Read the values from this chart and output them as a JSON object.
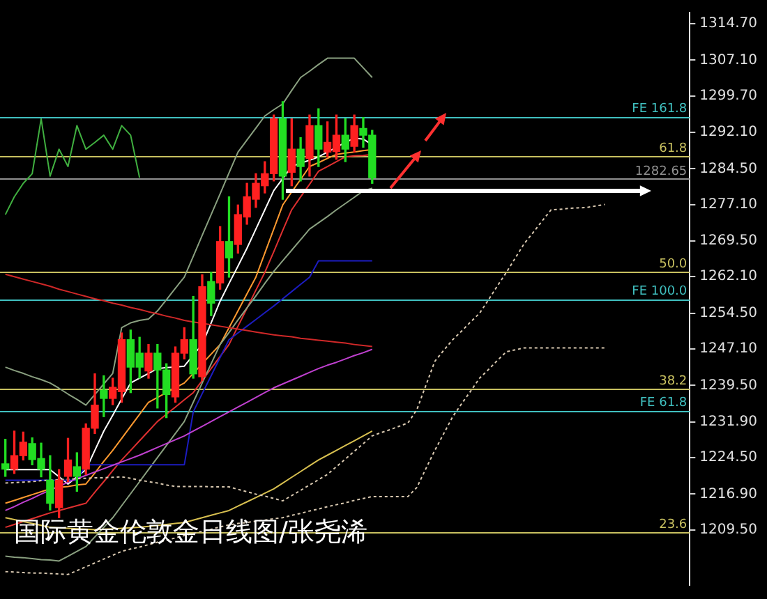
{
  "chart_data": {
    "type": "candlestick",
    "title": "国际黄金伦敦金日线图/张尧浠",
    "categories": [
      null,
      null,
      null,
      null,
      null,
      null,
      null,
      null,
      null,
      null,
      null,
      null,
      null,
      null,
      null,
      null,
      null,
      null,
      null,
      null,
      null,
      null,
      null,
      null,
      null,
      null,
      null,
      null,
      null,
      null,
      null,
      null,
      null,
      null,
      null,
      null,
      null,
      null,
      null,
      null,
      null,
      null,
      null,
      null,
      null,
      null,
      null,
      null,
      null,
      null,
      null,
      null,
      null,
      null,
      null,
      null,
      null,
      null,
      null,
      null,
      null,
      null,
      null,
      null,
      null,
      null,
      null,
      null,
      null,
      null,
      null,
      null,
      null,
      null,
      null,
      null,
      null
    ],
    "ohlc": [
      [
        1223.2,
        1228.3,
        1220.6,
        1222.1
      ],
      [
        1222.1,
        1230.0,
        1221.2,
        1224.9
      ],
      [
        1224.9,
        1229.8,
        1224.0,
        1227.7
      ],
      [
        1227.4,
        1228.6,
        1223.0,
        1224.1
      ],
      [
        1224.3,
        1227.5,
        1220.5,
        1222.1
      ],
      [
        1219.8,
        1224.9,
        1213.6,
        1215.0
      ],
      [
        1214.1,
        1222.0,
        1212.0,
        1219.8
      ],
      [
        1220.6,
        1228.5,
        1219.5,
        1224.0
      ],
      [
        1222.6,
        1225.5,
        1217.5,
        1220.6
      ],
      [
        1222.1,
        1231.5,
        1221.0,
        1230.6
      ],
      [
        1230.6,
        1241.9,
        1229.5,
        1235.4
      ],
      [
        1238.5,
        1241.5,
        1233.0,
        1236.8
      ],
      [
        1236.8,
        1241.0,
        1235.5,
        1239.1
      ],
      [
        1238.2,
        1250.4,
        1236.0,
        1249.0
      ],
      [
        1249.0,
        1251.0,
        1238.0,
        1243.3
      ],
      [
        1246.2,
        1249.5,
        1241.0,
        1243.3
      ],
      [
        1242.5,
        1248.0,
        1241.0,
        1246.2
      ],
      [
        1246.2,
        1248.0,
        1234.8,
        1242.7
      ],
      [
        1242.7,
        1244.0,
        1232.8,
        1237.6
      ],
      [
        1237.1,
        1247.5,
        1236.0,
        1246.2
      ],
      [
        1246.2,
        1251.5,
        1245.0,
        1249.0
      ],
      [
        1249.0,
        1258.0,
        1241.0,
        1241.9
      ],
      [
        1241.3,
        1262.5,
        1240.5,
        1260.0
      ],
      [
        1261.1,
        1263.0,
        1254.0,
        1256.6
      ],
      [
        1260.8,
        1272.5,
        1259.5,
        1269.4
      ],
      [
        1269.4,
        1278.7,
        1262.0,
        1266.0
      ],
      [
        1268.8,
        1277.0,
        1267.0,
        1275.0
      ],
      [
        1274.5,
        1281.5,
        1273.0,
        1278.7
      ],
      [
        1278.2,
        1283.5,
        1276.5,
        1281.5
      ],
      [
        1281.0,
        1286.0,
        1279.5,
        1283.5
      ],
      [
        1283.5,
        1295.7,
        1282.0,
        1294.9
      ],
      [
        1294.9,
        1298.5,
        1278.2,
        1283.0
      ],
      [
        1283.8,
        1294.9,
        1281.0,
        1288.6
      ],
      [
        1288.6,
        1291.0,
        1282.0,
        1285.0
      ],
      [
        1286.7,
        1295.7,
        1283.0,
        1293.5
      ],
      [
        1293.5,
        1297.0,
        1285.0,
        1288.6
      ],
      [
        1288.0,
        1294.3,
        1287.0,
        1290.0
      ],
      [
        1288.1,
        1295.7,
        1286.5,
        1291.5
      ],
      [
        1291.5,
        1294.9,
        1286.0,
        1288.6
      ],
      [
        1289.2,
        1295.7,
        1288.0,
        1293.5
      ],
      [
        1292.9,
        1295.2,
        1289.0,
        1291.5
      ],
      [
        1291.5,
        1292.5,
        1281.5,
        1282.65
      ],
      null,
      null,
      null,
      null,
      null,
      null,
      null,
      null,
      null,
      null,
      null,
      null,
      null,
      null,
      null,
      null,
      null,
      null,
      null,
      null,
      null,
      null,
      null,
      null,
      null,
      null,
      null,
      null,
      null,
      null,
      null,
      null,
      null,
      null,
      null
    ],
    "colors": [
      "#22dd22",
      "#ff2020",
      "#ff2020",
      "#22dd22",
      "#22dd22",
      "#22dd22",
      "#ff2020",
      "#ff2020",
      "#22dd22",
      "#ff2020",
      "#ff2020",
      "#22dd22",
      "#ff2020",
      "#ff2020",
      "#22dd22",
      "#22dd22",
      "#ff2020",
      "#22dd22",
      "#22dd22",
      "#ff2020",
      "#ff2020",
      "#22dd22",
      "#ff2020",
      "#22dd22",
      "#ff2020",
      "#22dd22",
      "#ff2020",
      "#ff2020",
      "#ff2020",
      "#ff2020",
      "#ff2020",
      "#22dd22",
      "#ff2020",
      "#22dd22",
      "#ff2020",
      "#22dd22",
      "#ff2020",
      "#ff2020",
      "#22dd22",
      "#ff2020",
      "#22dd22",
      "#22dd22",
      null,
      null,
      null,
      null,
      null,
      null,
      null,
      null,
      null,
      null,
      null,
      null,
      null,
      null,
      null,
      null,
      null,
      null,
      null,
      null,
      null,
      null,
      null,
      null,
      null,
      null,
      null,
      null,
      null,
      null,
      null,
      null,
      null,
      null,
      null
    ],
    "series": [
      {
        "type": "line",
        "color": "#d8c8b0",
        "line_style": "dotted",
        "values": [
          1200.8,
          1200.7,
          1200.6,
          1200.5,
          1200.5,
          1200.4,
          1200.3,
          1200.2,
          1201.0,
          1201.8,
          1202.6,
          1203.4,
          1204.2,
          1205.0,
          1205.5,
          1205.9,
          1206.4,
          1206.9,
          1207.3,
          1207.8,
          1208.3,
          1208.7,
          1209.2,
          1209.6,
          1210.1,
          1210.5,
          1210.8,
          1211.0,
          1211.3,
          1211.5,
          1211.8,
          1212.0,
          1212.5,
          1212.9,
          1213.4,
          1213.8,
          1214.3,
          1214.7,
          1215.1,
          1215.6,
          1216.0,
          1216.4,
          1216.4,
          1216.4,
          1216.4,
          1216.4,
          1218.3,
          1222.2,
          1226.0,
          1229.5,
          1233.0,
          1235.7,
          1238.3,
          1241.0,
          1242.8,
          1244.7,
          1246.5,
          1246.9,
          1247.3,
          1247.3,
          1247.3,
          1247.3,
          1247.3,
          1247.3,
          1247.3,
          1247.3,
          1247.3,
          1247.3,
          null,
          null,
          null,
          null,
          null,
          null,
          null,
          null,
          null
        ]
      },
      {
        "type": "line",
        "color": "#d8c8b0",
        "line_style": "dotted",
        "values": [
          1219.2,
          1219.3,
          1219.4,
          1219.5,
          1219.7,
          1219.8,
          1219.9,
          1220.0,
          1220.1,
          1220.2,
          1220.3,
          1220.3,
          1220.4,
          1220.5,
          1220.2,
          1219.8,
          1219.5,
          1219.2,
          1218.8,
          1218.5,
          1218.5,
          1218.5,
          1218.5,
          1218.4,
          1218.4,
          1218.4,
          1217.9,
          1217.4,
          1216.9,
          1216.5,
          1216.0,
          1215.5,
          1216.6,
          1217.7,
          1218.8,
          1219.9,
          1221.0,
          1222.6,
          1224.2,
          1225.8,
          1227.4,
          1229.0,
          1229.7,
          1230.3,
          1231.0,
          1231.7,
          1234.5,
          1239.5,
          1244.5,
          1246.8,
          1249.0,
          1250.8,
          1252.7,
          1254.5,
          1257.3,
          1260.2,
          1263.0,
          1266.0,
          1269.0,
          1271.3,
          1273.7,
          1276.0,
          1276.1,
          1276.3,
          1276.4,
          1276.5,
          1276.8,
          1277.1,
          null,
          null,
          null,
          null,
          null,
          null,
          null,
          null,
          null
        ]
      },
      {
        "type": "line",
        "color": "#d02828",
        "values": [
          1262.6,
          1262.1,
          1261.6,
          1261.1,
          1260.6,
          1260.1,
          1259.5,
          1259.0,
          1258.5,
          1258.0,
          1257.5,
          1257.1,
          1256.6,
          1256.2,
          1255.7,
          1255.3,
          1254.8,
          1254.4,
          1253.9,
          1253.5,
          1253.0,
          1252.7,
          1252.4,
          1252.1,
          1251.8,
          1251.5,
          1251.2,
          1250.9,
          1250.6,
          1250.3,
          1250.0,
          1249.8,
          1249.6,
          1249.3,
          1249.1,
          1248.9,
          1248.7,
          1248.5,
          1248.3,
          1248.0,
          1247.8,
          1247.6,
          null,
          null,
          null,
          null,
          null,
          null,
          null,
          null,
          null,
          null,
          null,
          null,
          null,
          null,
          null,
          null,
          null,
          null,
          null,
          null,
          null,
          null,
          null,
          null,
          null,
          null,
          null,
          null,
          null,
          null,
          null,
          null,
          null,
          null,
          null
        ]
      },
      {
        "type": "line",
        "color": "#d8c050",
        "values": [
          1212.0,
          1211.6,
          1211.2,
          1210.8,
          1210.4,
          1210.0,
          1209.9,
          1209.8,
          1209.7,
          1209.6,
          1209.5,
          1209.6,
          1209.7,
          1209.8,
          1209.9,
          1210.0,
          1210.2,
          1210.4,
          1210.6,
          1210.8,
          1211.0,
          1211.5,
          1212.0,
          1212.5,
          1213.0,
          1213.5,
          1214.4,
          1215.3,
          1216.2,
          1217.1,
          1218.0,
          1219.2,
          1220.4,
          1221.6,
          1222.8,
          1224.0,
          1225.0,
          1226.0,
          1227.0,
          1228.0,
          1229.0,
          1230.0,
          null,
          null,
          null,
          null,
          null,
          null,
          null,
          null,
          null,
          null,
          null,
          null,
          null,
          null,
          null,
          null,
          null,
          null,
          null,
          null,
          null,
          null,
          null,
          null,
          null,
          null,
          null,
          null,
          null,
          null,
          null,
          null,
          null,
          null,
          null
        ]
      },
      {
        "type": "line",
        "color": "#c040d0",
        "values": [
          1213.5,
          1214.3,
          1215.2,
          1216.0,
          1216.9,
          1217.7,
          1218.5,
          1219.4,
          1220.1,
          1220.8,
          1221.5,
          1222.2,
          1222.9,
          1223.6,
          1224.3,
          1225.0,
          1225.8,
          1226.6,
          1227.4,
          1228.2,
          1229.0,
          1230.0,
          1231.0,
          1232.0,
          1233.0,
          1234.0,
          1235.0,
          1236.0,
          1237.0,
          1238.0,
          1239.0,
          1239.8,
          1240.6,
          1241.4,
          1242.2,
          1243.0,
          1243.7,
          1244.3,
          1245.0,
          1245.7,
          1246.3,
          1247.0,
          null,
          null,
          null,
          null,
          null,
          null,
          null,
          null,
          null,
          null,
          null,
          null,
          null,
          null,
          null,
          null,
          null,
          null,
          null,
          null,
          null,
          null,
          null,
          null,
          null,
          null,
          null,
          null,
          null,
          null,
          null,
          null,
          null,
          null,
          null
        ]
      },
      {
        "type": "line",
        "color": "#1c1cc0",
        "values": [
          1219.8,
          1219.8,
          1219.8,
          1219.8,
          1219.8,
          1219.8,
          1219.8,
          1219.8,
          1219.8,
          1223.0,
          1223.0,
          1223.0,
          1223.0,
          1223.0,
          1223.0,
          1223.0,
          1223.0,
          1223.0,
          1223.0,
          1223.0,
          1223.0,
          1234.0,
          1237.8,
          1241.5,
          1245.3,
          1249.0,
          1250.4,
          1251.8,
          1253.2,
          1254.6,
          1256.0,
          1257.5,
          1259.0,
          1260.5,
          1262.0,
          1265.4,
          1265.4,
          1265.4,
          1265.4,
          1265.4,
          1265.4,
          1265.4,
          null,
          null,
          null,
          null,
          null,
          null,
          null,
          null,
          null,
          null,
          null,
          null,
          null,
          null,
          null,
          null,
          null,
          null,
          null,
          null,
          null,
          null,
          null,
          null,
          null,
          null,
          null,
          null,
          null,
          null,
          null,
          null,
          null,
          null,
          null
        ]
      },
      {
        "type": "line",
        "color": "#8aa080",
        "values": [
          1243.3,
          1242.6,
          1242.0,
          1241.3,
          1240.7,
          1240.0,
          1238.9,
          1237.7,
          1236.6,
          1235.4,
          1237.6,
          1239.8,
          1242.0,
          1251.5,
          1252.5,
          1253.0,
          1253.3,
          1255.0,
          1257.3,
          1259.7,
          1262.0,
          1266.3,
          1270.7,
          1275.0,
          1279.3,
          1283.7,
          1288.0,
          1290.5,
          1293.0,
          1295.5,
          1296.8,
          1298.0,
          1300.8,
          1303.5,
          1304.8,
          1306.2,
          1307.5,
          1307.5,
          1307.5,
          1307.5,
          1305.5,
          1303.5,
          null,
          null,
          null,
          null,
          null,
          null,
          null,
          null,
          null,
          null,
          null,
          null,
          null,
          null,
          null,
          null,
          null,
          null,
          null,
          null,
          null,
          null,
          null,
          null,
          null,
          null,
          null,
          null,
          null,
          null,
          null,
          null,
          null,
          null,
          null
        ]
      },
      {
        "type": "line",
        "color": "#8aa080",
        "values": [
          1204.0,
          1203.8,
          1203.7,
          1203.5,
          1203.3,
          1203.2,
          1203.0,
          1204.0,
          1205.0,
          1206.0,
          1208.0,
          1210.0,
          1212.0,
          1214.5,
          1217.0,
          1219.5,
          1222.0,
          1224.5,
          1227.0,
          1229.5,
          1232.0,
          1236.0,
          1240.0,
          1244.0,
          1248.0,
          1250.5,
          1253.1,
          1255.6,
          1258.1,
          1260.7,
          1263.2,
          1265.4,
          1267.6,
          1269.8,
          1272.0,
          1273.3,
          1274.6,
          1276.0,
          1277.3,
          1278.6,
          1279.9,
          1280.5,
          null,
          null,
          null,
          null,
          null,
          null,
          null,
          null,
          null,
          null,
          null,
          null,
          null,
          null,
          null,
          null,
          null,
          null,
          null,
          null,
          null,
          null,
          null,
          null,
          null,
          null,
          null,
          null,
          null,
          null,
          null,
          null,
          null,
          null,
          null
        ]
      },
      {
        "type": "line",
        "color": "#40b040",
        "values": [
          1275.0,
          1278.7,
          1281.5,
          1283.5,
          1294.9,
          1283.0,
          1288.6,
          1285.0,
          1293.5,
          1288.6,
          1290.0,
          1291.5,
          1288.6,
          1293.5,
          1291.5,
          1282.7,
          null,
          null,
          null,
          null,
          null,
          null,
          null,
          null,
          null,
          null,
          null,
          null,
          null,
          null,
          null,
          null,
          null,
          null,
          null,
          null,
          null,
          null,
          null,
          null,
          null,
          null,
          null,
          null,
          null,
          null,
          null,
          null,
          null,
          null,
          null,
          null,
          null,
          null,
          null,
          null,
          null,
          null,
          null,
          null,
          null,
          null,
          null,
          null,
          null,
          null,
          null,
          null,
          null,
          null,
          null,
          null,
          null,
          null,
          null,
          null,
          null
        ]
      },
      {
        "type": "line",
        "color": "#e03030",
        "values": [
          1210.0,
          1210.6,
          1211.2,
          1211.8,
          1212.4,
          1213.0,
          1213.5,
          1214.0,
          1214.5,
          1215.0,
          1217.3,
          1219.5,
          1221.8,
          1224.0,
          1226.0,
          1228.0,
          1230.0,
          1232.0,
          1233.5,
          1235.0,
          1236.5,
          1238.0,
          1240.5,
          1243.0,
          1245.5,
          1248.0,
          1251.8,
          1255.5,
          1259.3,
          1263.0,
          1267.3,
          1271.7,
          1276.0,
          1278.7,
          1281.3,
          1284.0,
          1285.0,
          1286.0,
          1287.0,
          1287.2,
          1287.3,
          1287.5,
          null,
          null,
          null,
          null,
          null,
          null,
          null,
          null,
          null,
          null,
          null,
          null,
          null,
          null,
          null,
          null,
          null,
          null,
          null,
          null,
          null,
          null,
          null,
          null,
          null,
          null,
          null,
          null,
          null,
          null,
          null,
          null,
          null,
          null,
          null
        ]
      },
      {
        "type": "line",
        "color": "#ff9a30",
        "values": [
          1215.0,
          1215.6,
          1216.2,
          1216.8,
          1217.4,
          1218.0,
          1218.3,
          1218.5,
          1218.8,
          1219.0,
          1221.3,
          1223.7,
          1226.0,
          1228.5,
          1231.0,
          1233.5,
          1236.0,
          1237.0,
          1238.0,
          1239.0,
          1240.0,
          1242.0,
          1244.0,
          1246.0,
          1248.0,
          1251.5,
          1255.0,
          1258.5,
          1262.0,
          1267.0,
          1272.0,
          1277.0,
          1279.7,
          1282.3,
          1285.0,
          1285.8,
          1286.7,
          1287.5,
          1287.8,
          1288.0,
          1288.3,
          1288.5,
          null,
          null,
          null,
          null,
          null,
          null,
          null,
          null,
          null,
          null,
          null,
          null,
          null,
          null,
          null,
          null,
          null,
          null,
          null,
          null,
          null,
          null,
          null,
          null,
          null,
          null,
          null,
          null,
          null,
          null,
          null,
          null,
          null,
          null,
          null
        ]
      },
      {
        "type": "line",
        "color": "#ffffff",
        "values": [
          1222.0,
          1222.0,
          1222.0,
          1222.0,
          1222.0,
          1222.0,
          1220.5,
          1219.0,
          1220.5,
          1222.0,
          1226.0,
          1230.0,
          1233.3,
          1236.7,
          1240.0,
          1241.0,
          1242.0,
          1243.0,
          1243.2,
          1243.3,
          1243.5,
          1245.8,
          1248.0,
          1252.5,
          1257.0,
          1260.7,
          1264.3,
          1268.0,
          1272.0,
          1276.0,
          1280.0,
          1282.5,
          1285.0,
          1285.7,
          1286.3,
          1287.0,
          1288.0,
          1289.0,
          1290.0,
          1290.9,
          1290.7,
          1289.5,
          null,
          null,
          null,
          null,
          null,
          null,
          null,
          null,
          null,
          null,
          null,
          null,
          null,
          null,
          null,
          null,
          null,
          null,
          null,
          null,
          null,
          null,
          null,
          null,
          null,
          null,
          null,
          null,
          null,
          null,
          null,
          null,
          null,
          null,
          null
        ]
      }
    ],
    "ylim": [
      1198,
      1317
    ],
    "yticks": [
      {
        "value": 1314.7,
        "label": "1314.70"
      },
      {
        "value": 1307.1,
        "label": "1307.10"
      },
      {
        "value": 1299.7,
        "label": "1299.70"
      },
      {
        "value": 1292.1,
        "label": "1292.10"
      },
      {
        "value": 1284.5,
        "label": "1284.50"
      },
      {
        "value": 1277.1,
        "label": "1277.10"
      },
      {
        "value": 1269.5,
        "label": "1269.50"
      },
      {
        "value": 1262.1,
        "label": "1262.10"
      },
      {
        "value": 1254.5,
        "label": "1254.50"
      },
      {
        "value": 1247.1,
        "label": "1247.10"
      },
      {
        "value": 1239.5,
        "label": "1239.50"
      },
      {
        "value": 1231.9,
        "label": "1231.90"
      },
      {
        "value": 1224.5,
        "label": "1224.50"
      },
      {
        "value": 1216.9,
        "label": "1216.90"
      },
      {
        "value": 1209.5,
        "label": "1209.50"
      }
    ],
    "tick_labels": "y",
    "ref_lines": [
      {
        "axis": "y",
        "value": 1295.4,
        "color": "#40c0c0"
      },
      {
        "axis": "y",
        "value": 1287.2,
        "color": "#c8c060"
      },
      {
        "axis": "y",
        "value": 1282.65,
        "label": "1282.65",
        "color": "#909090"
      },
      {
        "axis": "y",
        "value": 1263.1,
        "color": "#c8c060"
      },
      {
        "axis": "y",
        "value": 1257.5,
        "color": "#40c0c0"
      },
      {
        "axis": "y",
        "value": 1238.8,
        "color": "#c8c060"
      },
      {
        "axis": "y",
        "value": 1234.3,
        "color": "#40c0c0"
      },
      {
        "axis": "y",
        "value": 1209.0,
        "color": "#c8c060"
      }
    ],
    "annotations": [
      {
        "text": "FE 161.8",
        "y": 1295.4
      },
      {
        "text": "61.8",
        "y": 1287.2
      },
      {
        "text": "50.0",
        "y": 1263.1
      },
      {
        "text": "FE 100.0",
        "y": 1257.5
      },
      {
        "text": "38.2",
        "y": 1238.8
      },
      {
        "text": "FE 61.8",
        "y": 1234.3
      },
      {
        "text": "23.6",
        "y": 1209.0
      }
    ]
  }
}
